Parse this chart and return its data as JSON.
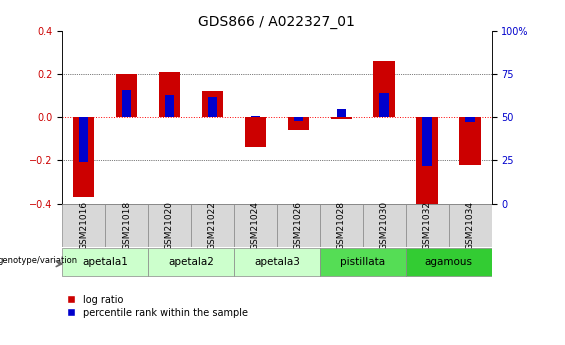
{
  "title": "GDS866 / A022327_01",
  "samples": [
    "GSM21016",
    "GSM21018",
    "GSM21020",
    "GSM21022",
    "GSM21024",
    "GSM21026",
    "GSM21028",
    "GSM21030",
    "GSM21032",
    "GSM21034"
  ],
  "log_ratio": [
    -0.37,
    0.2,
    0.21,
    0.12,
    -0.14,
    -0.06,
    -0.01,
    0.26,
    -0.4,
    -0.22
  ],
  "percentile_rank": [
    24,
    66,
    63,
    62,
    51,
    48,
    55,
    64,
    22,
    47
  ],
  "ylim": [
    -0.4,
    0.4
  ],
  "yticks_left": [
    -0.4,
    -0.2,
    0.0,
    0.2,
    0.4
  ],
  "yticks_right": [
    0,
    25,
    50,
    75,
    100
  ],
  "bar_color_red": "#cc0000",
  "bar_color_blue": "#0000cc",
  "bar_width": 0.5,
  "blue_bar_width": 0.22,
  "groups": [
    {
      "label": "apetala1",
      "start": 0,
      "end": 2,
      "color": "#ccffcc"
    },
    {
      "label": "apetala2",
      "start": 2,
      "end": 4,
      "color": "#ccffcc"
    },
    {
      "label": "apetala3",
      "start": 4,
      "end": 6,
      "color": "#ccffcc"
    },
    {
      "label": "pistillata",
      "start": 6,
      "end": 8,
      "color": "#55dd55"
    },
    {
      "label": "agamous",
      "start": 8,
      "end": 10,
      "color": "#33cc33"
    }
  ],
  "genotype_label": "genotype/variation",
  "legend_red": "log ratio",
  "legend_blue": "percentile rank within the sample",
  "title_fontsize": 10,
  "tick_fontsize": 7,
  "sample_fontsize": 6.5,
  "group_fontsize": 7.5
}
